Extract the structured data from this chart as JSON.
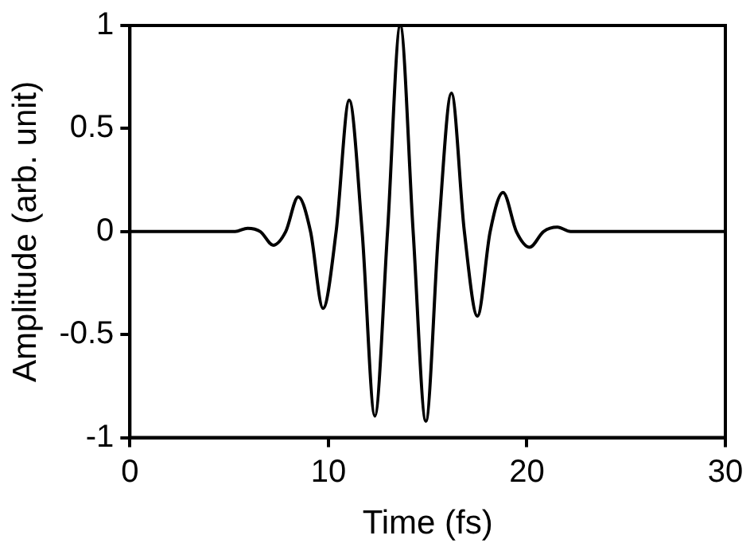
{
  "chart_data": {
    "type": "line",
    "xlabel": "Time (fs)",
    "ylabel": "Amplitude (arb. unit)",
    "xlim": [
      0,
      30
    ],
    "ylim": [
      -1,
      1
    ],
    "xticks": [
      0,
      10,
      20,
      30
    ],
    "yticks": [
      -1,
      -0.5,
      0,
      0.5,
      1
    ],
    "grid": false,
    "legend": false,
    "marker": "none",
    "line_style": "solid",
    "series": [
      {
        "color": "#000000",
        "x": [
          0,
          4,
          5.3,
          5.93,
          6.57,
          7.22,
          7.85,
          8.48,
          9.1,
          9.73,
          10.39,
          11.05,
          11.7,
          12.34,
          12.98,
          13.62,
          14.27,
          14.91,
          15.55,
          16.2,
          16.85,
          17.51,
          18.15,
          18.8,
          19.47,
          20.14,
          20.84,
          21.54,
          22.2,
          25,
          30
        ],
        "values": [
          0,
          0,
          0,
          0.016,
          0,
          -0.066,
          0,
          0.168,
          0,
          -0.373,
          0,
          0.638,
          0,
          -0.895,
          0,
          1,
          0,
          -0.92,
          0,
          0.672,
          0,
          -0.41,
          0,
          0.19,
          0,
          -0.076,
          0,
          0.021,
          0,
          0,
          0
        ]
      }
    ]
  }
}
